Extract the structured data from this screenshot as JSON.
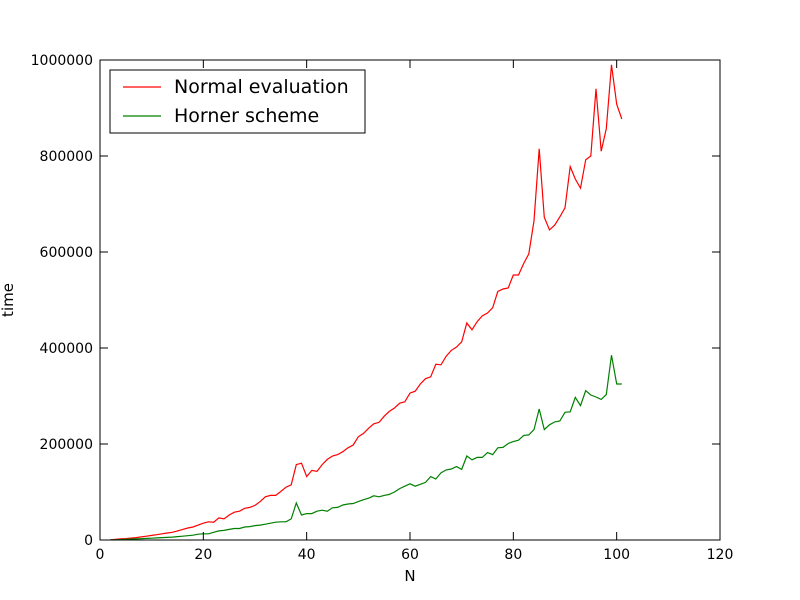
{
  "chart_data": {
    "type": "line",
    "xlabel": "N",
    "ylabel": "time",
    "xlim": [
      0,
      120
    ],
    "ylim": [
      0,
      1000000
    ],
    "xticks": [
      0,
      20,
      40,
      60,
      80,
      100,
      120
    ],
    "yticks": [
      0,
      200000,
      400000,
      600000,
      800000,
      1000000
    ],
    "xtick_labels": [
      "0",
      "20",
      "40",
      "60",
      "80",
      "100",
      "120"
    ],
    "ytick_labels": [
      "0",
      "200000",
      "400000",
      "600000",
      "800000",
      "1000000"
    ],
    "grid": false,
    "legend_position": "top-left",
    "series": [
      {
        "name": "Normal evaluation",
        "color": "#ff0000",
        "x": [
          2,
          3,
          4,
          5,
          6,
          7,
          8,
          9,
          10,
          11,
          12,
          13,
          14,
          15,
          16,
          17,
          18,
          19,
          20,
          21,
          22,
          23,
          24,
          25,
          26,
          27,
          28,
          29,
          30,
          31,
          32,
          33,
          34,
          35,
          36,
          37,
          38,
          39,
          40,
          41,
          42,
          43,
          44,
          45,
          46,
          47,
          48,
          49,
          50,
          51,
          52,
          53,
          54,
          55,
          56,
          57,
          58,
          59,
          60,
          61,
          62,
          63,
          64,
          65,
          66,
          67,
          68,
          69,
          70,
          71,
          72,
          73,
          74,
          75,
          76,
          77,
          78,
          79,
          80,
          81,
          82,
          83,
          84,
          85,
          86,
          87,
          88,
          89,
          90,
          91,
          92,
          93,
          94,
          95,
          96,
          97,
          98,
          99,
          100,
          101
        ],
        "y": [
          500,
          1200,
          2200,
          3000,
          4000,
          5000,
          6500,
          8000,
          9500,
          11000,
          13000,
          14500,
          16000,
          19000,
          22000,
          25000,
          27000,
          31000,
          35000,
          38000,
          37000,
          46000,
          44000,
          52000,
          58000,
          60000,
          66000,
          68000,
          72000,
          80000,
          90000,
          93000,
          93000,
          101000,
          110000,
          115000,
          157000,
          160000,
          132000,
          145000,
          143000,
          157000,
          168000,
          175000,
          178000,
          184000,
          192000,
          198000,
          215000,
          222000,
          233000,
          242000,
          245000,
          258000,
          268000,
          275000,
          285000,
          288000,
          306000,
          310000,
          325000,
          336000,
          340000,
          366000,
          365000,
          383000,
          395000,
          402000,
          413000,
          452000,
          438000,
          455000,
          467000,
          473000,
          484000,
          518000,
          523000,
          525000,
          552000,
          552000,
          576000,
          596000,
          665000,
          815000,
          672000,
          646000,
          656000,
          673000,
          692000,
          778000,
          752000,
          733000,
          792000,
          800000,
          940000,
          810000,
          857000,
          990000,
          908000,
          877000
        ]
      },
      {
        "name": "Horner scheme",
        "color": "#008000",
        "x": [
          2,
          3,
          4,
          5,
          6,
          7,
          8,
          9,
          10,
          11,
          12,
          13,
          14,
          15,
          16,
          17,
          18,
          19,
          20,
          21,
          22,
          23,
          24,
          25,
          26,
          27,
          28,
          29,
          30,
          31,
          32,
          33,
          34,
          35,
          36,
          37,
          38,
          39,
          40,
          41,
          42,
          43,
          44,
          45,
          46,
          47,
          48,
          49,
          50,
          51,
          52,
          53,
          54,
          55,
          56,
          57,
          58,
          59,
          60,
          61,
          62,
          63,
          64,
          65,
          66,
          67,
          68,
          69,
          70,
          71,
          72,
          73,
          74,
          75,
          76,
          77,
          78,
          79,
          80,
          81,
          82,
          83,
          84,
          85,
          86,
          87,
          88,
          89,
          90,
          91,
          92,
          93,
          94,
          95,
          96,
          97,
          98,
          99,
          100,
          101
        ],
        "y": [
          200,
          500,
          900,
          1300,
          1800,
          2300,
          2800,
          3300,
          3800,
          4300,
          4900,
          5500,
          6000,
          7000,
          8000,
          9000,
          10000,
          12000,
          13000,
          13000,
          16000,
          19000,
          20000,
          22000,
          24000,
          24000,
          27000,
          28000,
          30000,
          31000,
          33000,
          35000,
          37000,
          38000,
          38000,
          44000,
          77000,
          52000,
          55000,
          55000,
          60000,
          62000,
          60000,
          67000,
          68000,
          73000,
          75000,
          76000,
          80000,
          84000,
          87000,
          92000,
          90000,
          93000,
          95000,
          100000,
          107000,
          112000,
          117000,
          112000,
          116000,
          120000,
          132000,
          127000,
          140000,
          146000,
          148000,
          153000,
          147000,
          175000,
          167000,
          172000,
          172000,
          182000,
          178000,
          192000,
          193000,
          201000,
          205000,
          208000,
          218000,
          219000,
          230000,
          273000,
          230000,
          240000,
          246000,
          248000,
          266000,
          267000,
          297000,
          280000,
          311000,
          302000,
          298000,
          293000,
          303000,
          385000,
          325000,
          325000
        ]
      }
    ]
  }
}
